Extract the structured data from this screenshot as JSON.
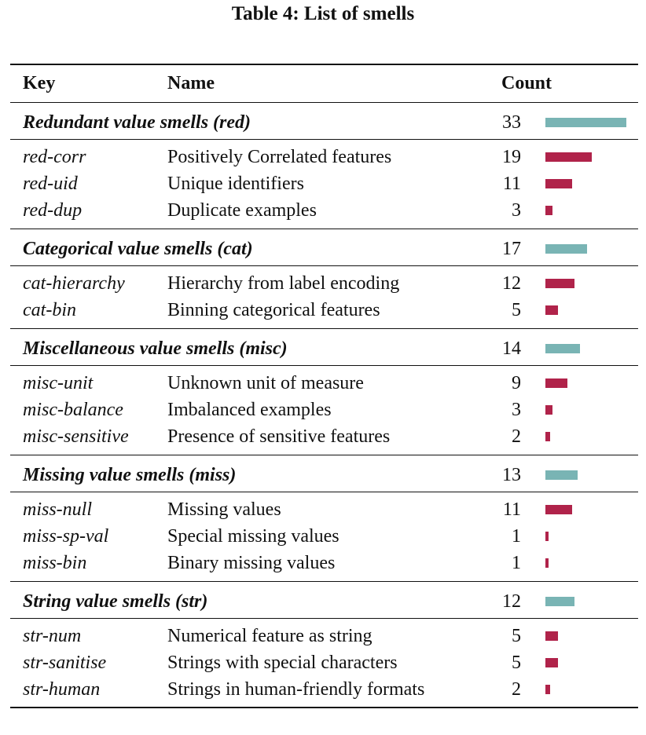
{
  "caption": "Table 4: List of smells",
  "headers": {
    "key": "Key",
    "name": "Name",
    "count": "Count"
  },
  "colors": {
    "group_bar": "#79b4b4",
    "item_bar": "#b0234a"
  },
  "bar_max_count": 33,
  "groups": [
    {
      "label": "Redundant value smells (red)",
      "count": 33,
      "items": [
        {
          "key": "red-corr",
          "name": "Positively Correlated features",
          "count": 19
        },
        {
          "key": "red-uid",
          "name": "Unique identifiers",
          "count": 11
        },
        {
          "key": "red-dup",
          "name": "Duplicate examples",
          "count": 3
        }
      ]
    },
    {
      "label": "Categorical value smells (cat)",
      "count": 17,
      "items": [
        {
          "key": "cat-hierarchy",
          "name": "Hierarchy from label encoding",
          "count": 12
        },
        {
          "key": "cat-bin",
          "name": "Binning categorical features",
          "count": 5
        }
      ]
    },
    {
      "label": "Miscellaneous value smells (misc)",
      "count": 14,
      "items": [
        {
          "key": "misc-unit",
          "name": "Unknown unit of measure",
          "count": 9
        },
        {
          "key": "misc-balance",
          "name": "Imbalanced examples",
          "count": 3
        },
        {
          "key": "misc-sensitive",
          "name": "Presence of sensitive features",
          "count": 2
        }
      ]
    },
    {
      "label": "Missing value smells (miss)",
      "count": 13,
      "items": [
        {
          "key": "miss-null",
          "name": "Missing values",
          "count": 11
        },
        {
          "key": "miss-sp-val",
          "name": "Special missing values",
          "count": 1
        },
        {
          "key": "miss-bin",
          "name": "Binary missing values",
          "count": 1
        }
      ]
    },
    {
      "label": "String value smells (str)",
      "count": 12,
      "items": [
        {
          "key": "str-num",
          "name": "Numerical feature as string",
          "count": 5
        },
        {
          "key": "str-sanitise",
          "name": "Strings with special characters",
          "count": 5
        },
        {
          "key": "str-human",
          "name": "Strings in human-friendly formats",
          "count": 2
        }
      ]
    }
  ]
}
